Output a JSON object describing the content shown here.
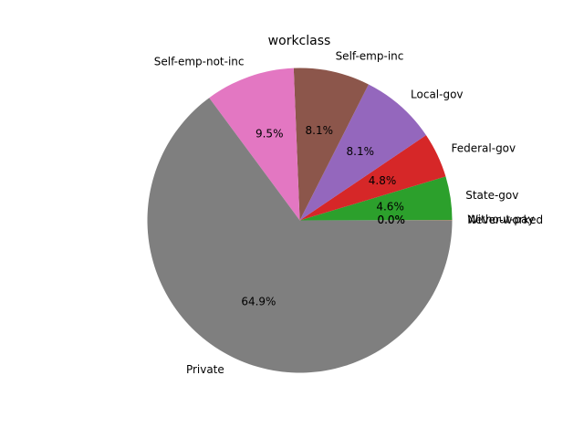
{
  "chart_data": {
    "type": "pie",
    "title": "workclass",
    "slices": [
      {
        "label": "Never-worked",
        "value": 0.02,
        "pct_label": "0.0%",
        "color": "#1f77b4"
      },
      {
        "label": "Without-pay",
        "value": 0.03,
        "pct_label": "0.0%",
        "color": "#ff7f0e"
      },
      {
        "label": "State-gov",
        "value": 4.6,
        "pct_label": "4.6%",
        "color": "#2ca02c"
      },
      {
        "label": "Federal-gov",
        "value": 4.8,
        "pct_label": "4.8%",
        "color": "#d62728"
      },
      {
        "label": "Local-gov",
        "value": 8.1,
        "pct_label": "8.1%",
        "color": "#9467bd"
      },
      {
        "label": "Self-emp-inc",
        "value": 8.1,
        "pct_label": "8.1%",
        "color": "#8c564b"
      },
      {
        "label": "Self-emp-not-inc",
        "value": 9.5,
        "pct_label": "9.5%",
        "color": "#e377c2"
      },
      {
        "label": "Private",
        "value": 64.9,
        "pct_label": "64.9%",
        "color": "#7f7f7f"
      }
    ]
  }
}
